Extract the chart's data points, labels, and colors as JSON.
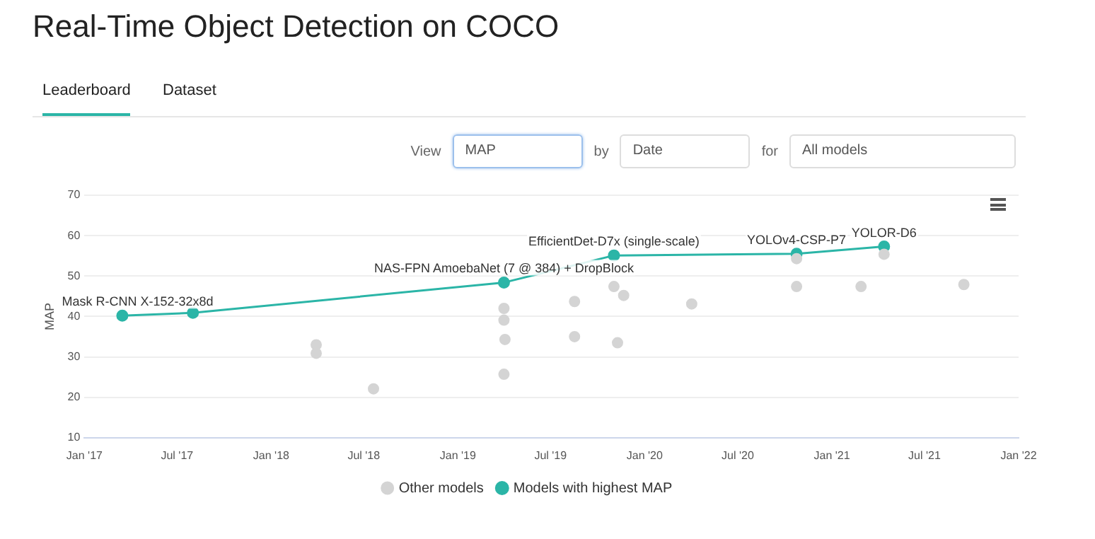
{
  "chart_data": {
    "type": "scatter",
    "title": "Real-Time Object Detection on COCO",
    "ylabel": "MAP",
    "annotations": [
      "Leaderboard",
      "Dataset",
      "View",
      "MAP",
      "by",
      "Date",
      "for",
      "All models",
      {
        "text": "Mask R-CNN X-152-32x8d",
        "x": "2017-03-16",
        "y": 40.2
      },
      {
        "text": "NAS-FPN AmoebaNet (7 @ 384) + DropBlock",
        "x": "2019-04-01",
        "y": 48.4
      },
      {
        "text": "EfficientDet-D7x (single-scale)",
        "x": "2019-11-02",
        "y": 55.1
      },
      {
        "text": "YOLOv4-CSP-P7",
        "x": "2020-10-24",
        "y": 55.5
      },
      {
        "text": "YOLOR-D6",
        "x": "2021-04-13",
        "y": 57.3
      }
    ],
    "series": [
      {
        "name": "Other models",
        "type": "scatter",
        "color": "#d4d4d4",
        "x": [
          "2018-03-30",
          "2018-03-30",
          "2018-07-20",
          "2019-04-01",
          "2019-04-01",
          "2019-04-03",
          "2019-04-01",
          "2019-08-17",
          "2019-08-17",
          "2019-11-02",
          "2019-11-21",
          "2019-11-09",
          "2020-04-02",
          "2020-10-24",
          "2020-10-24",
          "2021-02-27",
          "2021-04-13",
          "2021-09-16"
        ],
        "values": [
          33.0,
          30.9,
          22.1,
          42.0,
          39.1,
          34.3,
          25.7,
          43.7,
          35.0,
          47.4,
          45.2,
          33.5,
          43.1,
          54.3,
          47.4,
          47.4,
          55.4,
          47.9
        ]
      },
      {
        "name": "Models with highest MAP",
        "type": "line",
        "color": "#2bb5a7",
        "x": [
          "2017-03-16",
          "2017-08-01",
          "2019-04-01",
          "2019-11-02",
          "2020-10-24",
          "2021-04-13"
        ],
        "values": [
          40.2,
          40.9,
          48.4,
          55.1,
          55.5,
          57.3
        ]
      }
    ],
    "xlim": [
      "2017-01-01",
      "2022-01-01"
    ],
    "xticks": [
      {
        "value": "2017-01-01",
        "label": "Jan '17"
      },
      {
        "value": "2017-07-01",
        "label": "Jul '17"
      },
      {
        "value": "2018-01-01",
        "label": "Jan '18"
      },
      {
        "value": "2018-07-01",
        "label": "Jul '18"
      },
      {
        "value": "2019-01-01",
        "label": "Jan '19"
      },
      {
        "value": "2019-07-01",
        "label": "Jul '19"
      },
      {
        "value": "2020-01-01",
        "label": "Jan '20"
      },
      {
        "value": "2020-07-01",
        "label": "Jul '20"
      },
      {
        "value": "2021-01-01",
        "label": "Jan '21"
      },
      {
        "value": "2021-07-01",
        "label": "Jul '21"
      },
      {
        "value": "2022-01-01",
        "label": "Jan '22"
      }
    ],
    "ylim": [
      10,
      70
    ],
    "yticks": [
      10,
      20,
      30,
      40,
      50,
      60,
      70
    ],
    "grid": "y",
    "legend": "bottom",
    "marker": "circle",
    "line_style": "solid"
  }
}
